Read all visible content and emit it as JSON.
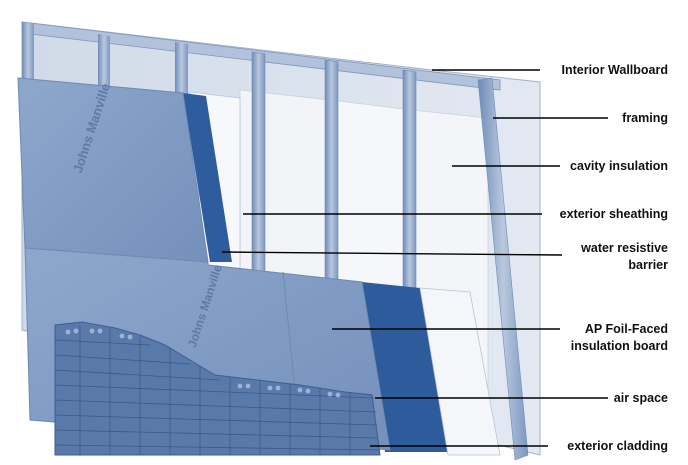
{
  "diagram": {
    "colors": {
      "panel": "#7e99c2",
      "panel_light": "#9bb0d1",
      "water_barrier": "#2e5c9c",
      "insulation": "#eef1f6",
      "wallboard": "#dbe3ee",
      "brick": "#5877a9",
      "leader": "#000000"
    },
    "brand_mark": "Johns Manville",
    "labels": {
      "interior_wallboard": "Interior Wallboard",
      "framing": "framing",
      "cavity_insulation": "cavity insulation",
      "exterior_sheathing": "exterior sheathing",
      "water_resistive_barrier_1": "water resistive",
      "water_resistive_barrier_2": "barrier",
      "ap_board_1": "AP Foil-Faced",
      "ap_board_2": "insulation board",
      "air_space": "air space",
      "exterior_cladding": "exterior cladding"
    }
  }
}
